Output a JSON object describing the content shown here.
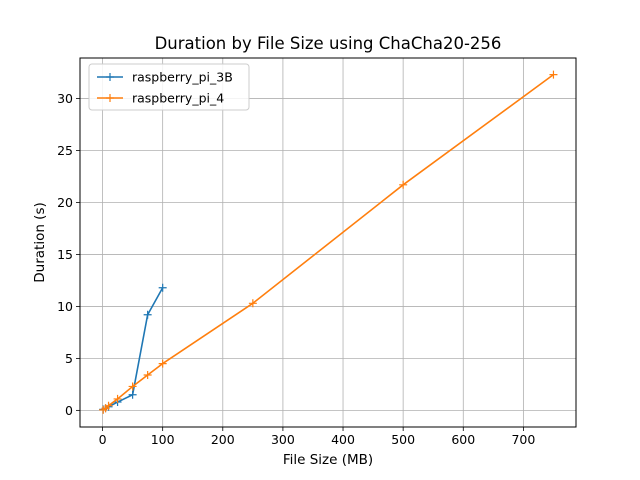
{
  "chart_data": {
    "type": "line",
    "title": "Duration by File Size using ChaCha20-256",
    "xlabel": "File Size (MB)",
    "ylabel": "Duration (s)",
    "xlim": [
      -37.5,
      787.5
    ],
    "ylim": [
      -1.6,
      33.9
    ],
    "xticks": [
      0,
      100,
      200,
      300,
      400,
      500,
      600,
      700
    ],
    "yticks": [
      0,
      5,
      10,
      15,
      20,
      25,
      30
    ],
    "grid": true,
    "legend_position": "upper-left",
    "marker": "plus",
    "series": [
      {
        "name": "raspberry_pi_3B",
        "color": "#1f77b4",
        "x": [
          1,
          5,
          10,
          25,
          50,
          75,
          100
        ],
        "y": [
          0.1,
          0.2,
          0.35,
          0.8,
          1.5,
          9.2,
          11.8
        ]
      },
      {
        "name": "raspberry_pi_4",
        "color": "#ff7f0e",
        "x": [
          1,
          5,
          10,
          25,
          50,
          75,
          100,
          250,
          500,
          750
        ],
        "y": [
          0.05,
          0.2,
          0.45,
          1.1,
          2.3,
          3.4,
          4.5,
          10.3,
          21.7,
          32.3
        ]
      }
    ]
  }
}
